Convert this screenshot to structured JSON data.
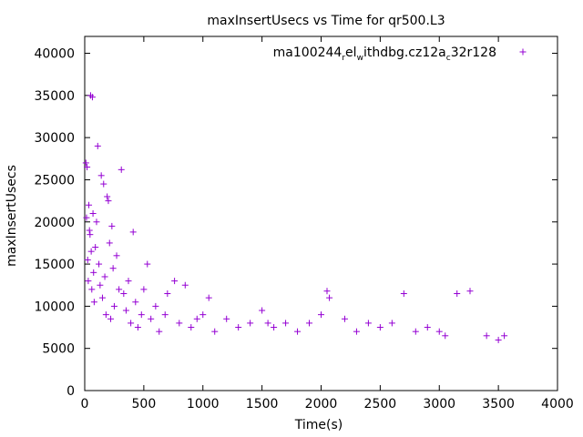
{
  "chart_data": {
    "type": "scatter",
    "title": "maxInsertUsecs vs Time for qr500.L3",
    "xlabel": "Time(s)",
    "ylabel": "maxInsertUsecs",
    "xlim": [
      0,
      4000
    ],
    "ylim": [
      0,
      42000
    ],
    "xticks": [
      0,
      500,
      1000,
      1500,
      2000,
      2500,
      3000,
      3500,
      4000
    ],
    "yticks": [
      0,
      5000,
      10000,
      15000,
      20000,
      25000,
      30000,
      35000,
      40000
    ],
    "grid": false,
    "legend_position": "top-right",
    "marker": "plus",
    "color": "#9400d3",
    "series": [
      {
        "name": "ma100244_rel_withdbg.cz12a_c32r128",
        "points": [
          [
            10,
            27000
          ],
          [
            15,
            20500
          ],
          [
            20,
            26500
          ],
          [
            25,
            15500
          ],
          [
            30,
            13000
          ],
          [
            35,
            22000
          ],
          [
            40,
            19000
          ],
          [
            45,
            18500
          ],
          [
            50,
            35000
          ],
          [
            55,
            16500
          ],
          [
            60,
            12000
          ],
          [
            65,
            34800
          ],
          [
            70,
            21000
          ],
          [
            75,
            14000
          ],
          [
            80,
            10500
          ],
          [
            90,
            17000
          ],
          [
            100,
            20000
          ],
          [
            110,
            29000
          ],
          [
            120,
            15000
          ],
          [
            130,
            12500
          ],
          [
            140,
            25500
          ],
          [
            150,
            11000
          ],
          [
            160,
            24500
          ],
          [
            170,
            13500
          ],
          [
            180,
            9000
          ],
          [
            190,
            23000
          ],
          [
            200,
            22500
          ],
          [
            210,
            17500
          ],
          [
            220,
            8500
          ],
          [
            230,
            19500
          ],
          [
            240,
            14500
          ],
          [
            250,
            10000
          ],
          [
            270,
            16000
          ],
          [
            290,
            12000
          ],
          [
            310,
            26200
          ],
          [
            330,
            11500
          ],
          [
            350,
            9500
          ],
          [
            370,
            13000
          ],
          [
            390,
            8000
          ],
          [
            410,
            18800
          ],
          [
            430,
            10500
          ],
          [
            450,
            7500
          ],
          [
            480,
            9000
          ],
          [
            500,
            12000
          ],
          [
            530,
            15000
          ],
          [
            560,
            8500
          ],
          [
            600,
            10000
          ],
          [
            630,
            7000
          ],
          [
            680,
            9000
          ],
          [
            700,
            11500
          ],
          [
            760,
            13000
          ],
          [
            800,
            8000
          ],
          [
            850,
            12500
          ],
          [
            900,
            7500
          ],
          [
            950,
            8500
          ],
          [
            1000,
            9000
          ],
          [
            1050,
            11000
          ],
          [
            1100,
            7000
          ],
          [
            1200,
            8500
          ],
          [
            1300,
            7500
          ],
          [
            1400,
            8000
          ],
          [
            1500,
            9500
          ],
          [
            1550,
            8000
          ],
          [
            1600,
            7500
          ],
          [
            1700,
            8000
          ],
          [
            1800,
            7000
          ],
          [
            1900,
            8000
          ],
          [
            2000,
            9000
          ],
          [
            2050,
            11800
          ],
          [
            2070,
            11000
          ],
          [
            2200,
            8500
          ],
          [
            2300,
            7000
          ],
          [
            2400,
            8000
          ],
          [
            2500,
            7500
          ],
          [
            2600,
            8000
          ],
          [
            2700,
            11500
          ],
          [
            2800,
            7000
          ],
          [
            2900,
            7500
          ],
          [
            3000,
            7000
          ],
          [
            3050,
            6500
          ],
          [
            3150,
            11500
          ],
          [
            3260,
            11800
          ],
          [
            3400,
            6500
          ],
          [
            3500,
            6000
          ],
          [
            3550,
            6500
          ]
        ]
      }
    ]
  }
}
